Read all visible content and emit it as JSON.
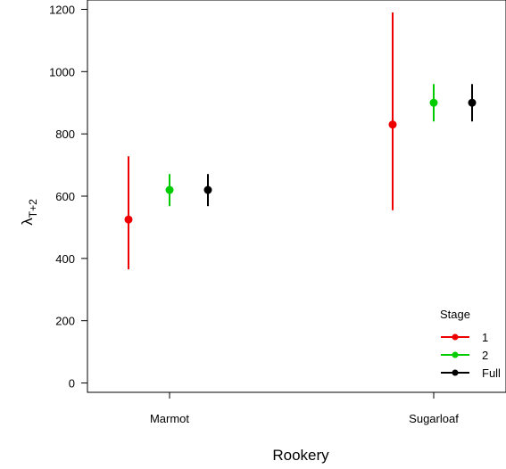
{
  "chart_data": {
    "type": "scatter",
    "title": "",
    "xlabel": "Rookery",
    "ylabel": {
      "main": "λ",
      "sub": "T+2"
    },
    "categories": [
      "Marmot",
      "Sugarloaf"
    ],
    "ylim": [
      -30,
      1230
    ],
    "yticks": [
      0,
      200,
      400,
      600,
      800,
      1000,
      1200
    ],
    "grid": false,
    "legend": {
      "title": "Stage",
      "position": "bottom-right"
    },
    "series": [
      {
        "name": "1",
        "color": "#ee0000",
        "points": [
          {
            "category": "Marmot",
            "y": 525,
            "low": 365,
            "high": 728
          },
          {
            "category": "Sugarloaf",
            "y": 830,
            "low": 555,
            "high": 1190
          }
        ]
      },
      {
        "name": "2",
        "color": "#00cc00",
        "points": [
          {
            "category": "Marmot",
            "y": 620,
            "low": 568,
            "high": 671
          },
          {
            "category": "Sugarloaf",
            "y": 900,
            "low": 840,
            "high": 960
          }
        ]
      },
      {
        "name": "Full",
        "color": "#000000",
        "points": [
          {
            "category": "Marmot",
            "y": 620,
            "low": 568,
            "high": 671
          },
          {
            "category": "Sugarloaf",
            "y": 900,
            "low": 840,
            "high": 960
          }
        ]
      }
    ]
  }
}
